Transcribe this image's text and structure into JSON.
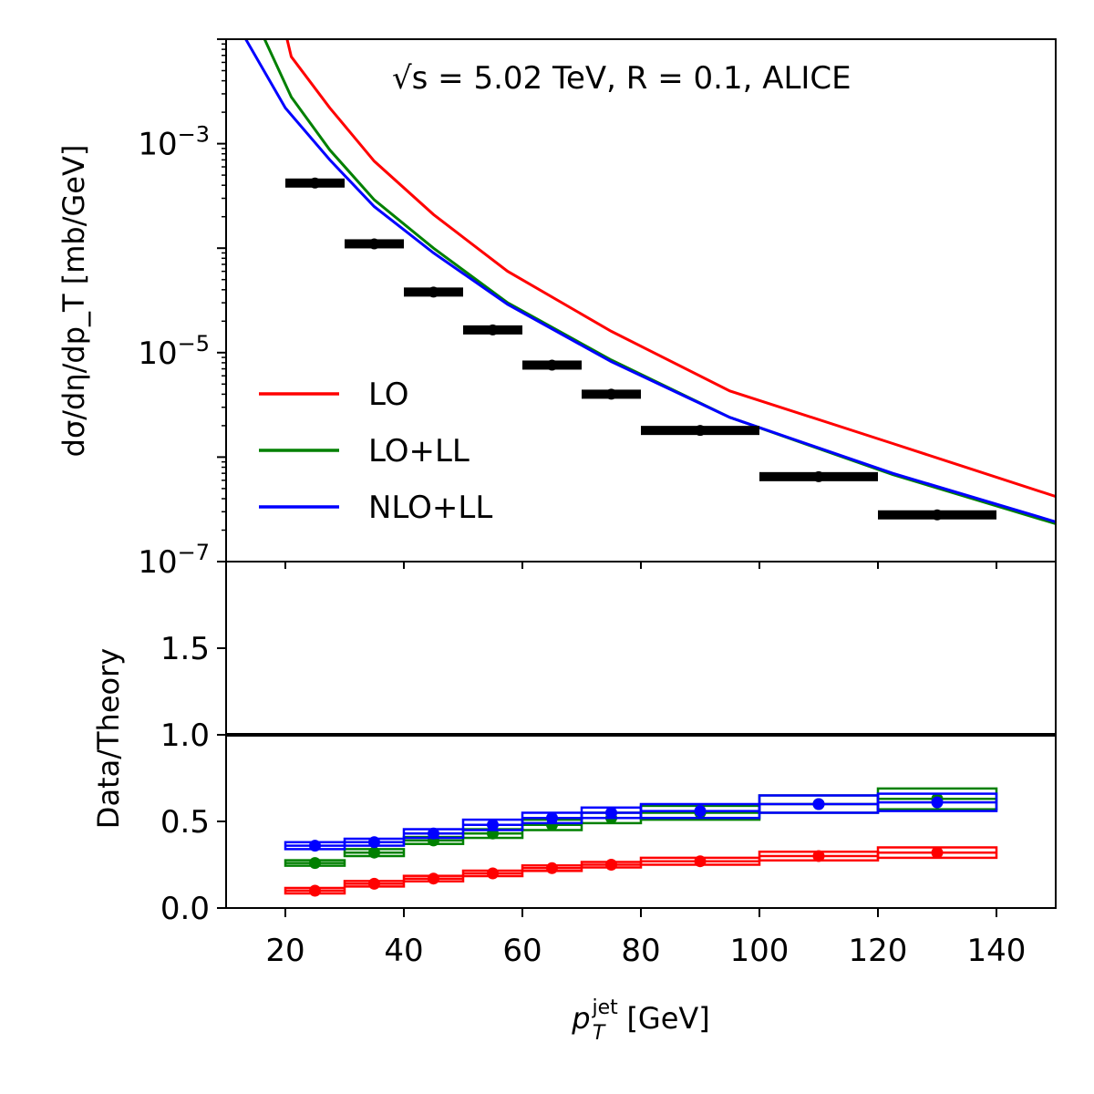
{
  "chart_data": [
    {
      "type": "line",
      "panel": "top",
      "annotation": "√s = 5.02 TeV, R = 0.1, ALICE",
      "ylabel": "dσ/dη/dp_T [mb/GeV]",
      "yscale": "log",
      "xlim": [
        10,
        150
      ],
      "ylim": [
        1e-07,
        0.01
      ],
      "y_tick_labels": [
        "10^-3",
        "10^-5",
        "10^-7"
      ],
      "legend_location": "lower-left",
      "legend": [
        "LO",
        "LO+LL",
        "NLO+LL"
      ],
      "colors": {
        "LO": "#ff0000",
        "LO+LL": "#008000",
        "NLO+LL": "#0000ff",
        "Data": "#000000"
      },
      "series": [
        {
          "name": "LO",
          "x": [
            20,
            21,
            27.5,
            35,
            45,
            57.5,
            75,
            95,
            122.5,
            150
          ],
          "y": [
            0.0117,
            0.0068,
            0.0022,
            0.00068,
            0.00021,
            6e-05,
            1.6e-05,
            4.3e-06,
            1.35e-06,
            4.2e-07
          ]
        },
        {
          "name": "LO+LL",
          "x": [
            16,
            21,
            27.5,
            35,
            45,
            57.5,
            75,
            95,
            122.5,
            150
          ],
          "y": [
            0.0115,
            0.0028,
            0.00087,
            0.00029,
            0.0001,
            3e-05,
            8.5e-06,
            2.4e-06,
            6.8e-07,
            2.3e-07
          ]
        },
        {
          "name": "NLO+LL",
          "x": [
            12,
            20,
            27.5,
            35,
            45,
            57.5,
            75,
            95,
            122.5,
            150
          ],
          "y": [
            0.0135,
            0.0022,
            0.0007,
            0.00025,
            9e-05,
            2.9e-05,
            8.2e-06,
            2.4e-06,
            7e-07,
            2.4e-07
          ]
        }
      ],
      "data_points": {
        "name": "Data",
        "x": [
          25,
          35,
          45,
          55,
          65,
          75,
          90,
          110,
          130
        ],
        "x_low": [
          20,
          30,
          40,
          50,
          60,
          70,
          80,
          100,
          120
        ],
        "x_high": [
          30,
          40,
          50,
          60,
          70,
          80,
          100,
          120,
          140
        ],
        "y": [
          0.00042,
          0.00011,
          3.8e-05,
          1.65e-05,
          7.6e-06,
          4e-06,
          1.8e-06,
          6.5e-07,
          2.8e-07
        ]
      }
    },
    {
      "type": "scatter",
      "panel": "bottom",
      "xlabel": "p_T^jet [GeV]",
      "ylabel": "Data/Theory",
      "xlim": [
        10,
        150
      ],
      "ylim": [
        0,
        2
      ],
      "x_ticks": [
        20,
        40,
        60,
        80,
        100,
        120,
        140
      ],
      "y_ticks": [
        0.0,
        0.5,
        1.0,
        1.5
      ],
      "reference_line": 1.0,
      "bins_low": [
        20,
        30,
        40,
        50,
        60,
        70,
        80,
        100,
        120
      ],
      "bins_high": [
        30,
        40,
        50,
        60,
        70,
        80,
        100,
        120,
        140
      ],
      "x": [
        25,
        35,
        45,
        55,
        65,
        75,
        90,
        110,
        130
      ],
      "series": [
        {
          "name": "LO",
          "y": [
            0.1,
            0.14,
            0.17,
            0.2,
            0.23,
            0.25,
            0.27,
            0.3,
            0.32
          ],
          "box_half_height": [
            0.01,
            0.01,
            0.012,
            0.015,
            0.015,
            0.015,
            0.02,
            0.025,
            0.03
          ]
        },
        {
          "name": "LO+LL",
          "y": [
            0.26,
            0.32,
            0.39,
            0.43,
            0.48,
            0.52,
            0.55,
            0.6,
            0.63
          ],
          "box_half_height": [
            0.015,
            0.02,
            0.02,
            0.025,
            0.03,
            0.03,
            0.04,
            0.05,
            0.06
          ]
        },
        {
          "name": "NLO+LL",
          "y": [
            0.36,
            0.38,
            0.43,
            0.48,
            0.52,
            0.55,
            0.56,
            0.6,
            0.61
          ],
          "box_half_height": [
            0.02,
            0.02,
            0.025,
            0.03,
            0.03,
            0.03,
            0.04,
            0.05,
            0.05
          ]
        }
      ]
    }
  ]
}
